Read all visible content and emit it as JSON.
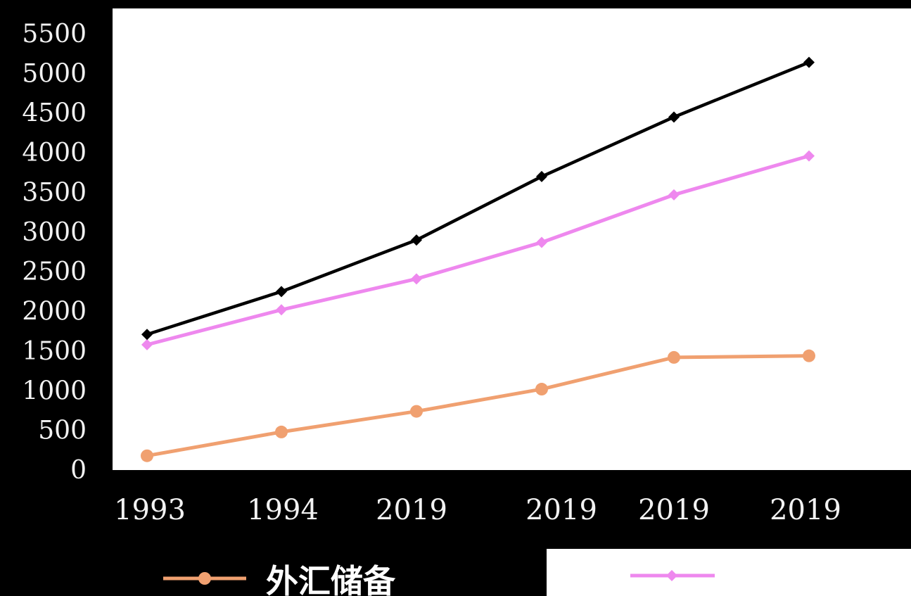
{
  "chart_data": {
    "type": "line",
    "categories": [
      "1993",
      "1994",
      "2019",
      "2019",
      "2019",
      "2019"
    ],
    "ylim": [
      0,
      5500
    ],
    "yticks": [
      "0",
      "500",
      "1000",
      "1500",
      "2000",
      "2500",
      "3000",
      "3500",
      "4000",
      "4500",
      "5000",
      "5500"
    ],
    "grid": false,
    "legend_position": "bottom",
    "series": [
      {
        "name": "外汇储备",
        "color": "#f0a070",
        "marker": "circle",
        "values": [
          180,
          480,
          740,
          1020,
          1420,
          1440
        ]
      },
      {
        "name": "",
        "color": "#ee88ee",
        "marker": "diamond",
        "values": [
          1580,
          2020,
          2410,
          2870,
          3470,
          3960
        ]
      },
      {
        "name": "",
        "color": "#000000",
        "marker": "diamond",
        "values": [
          1710,
          2250,
          2900,
          3700,
          4450,
          5140
        ]
      }
    ]
  },
  "colors": {
    "plot_background": "#ffffff",
    "page_background": "#000000",
    "tick_label": "#f2f2f2"
  }
}
